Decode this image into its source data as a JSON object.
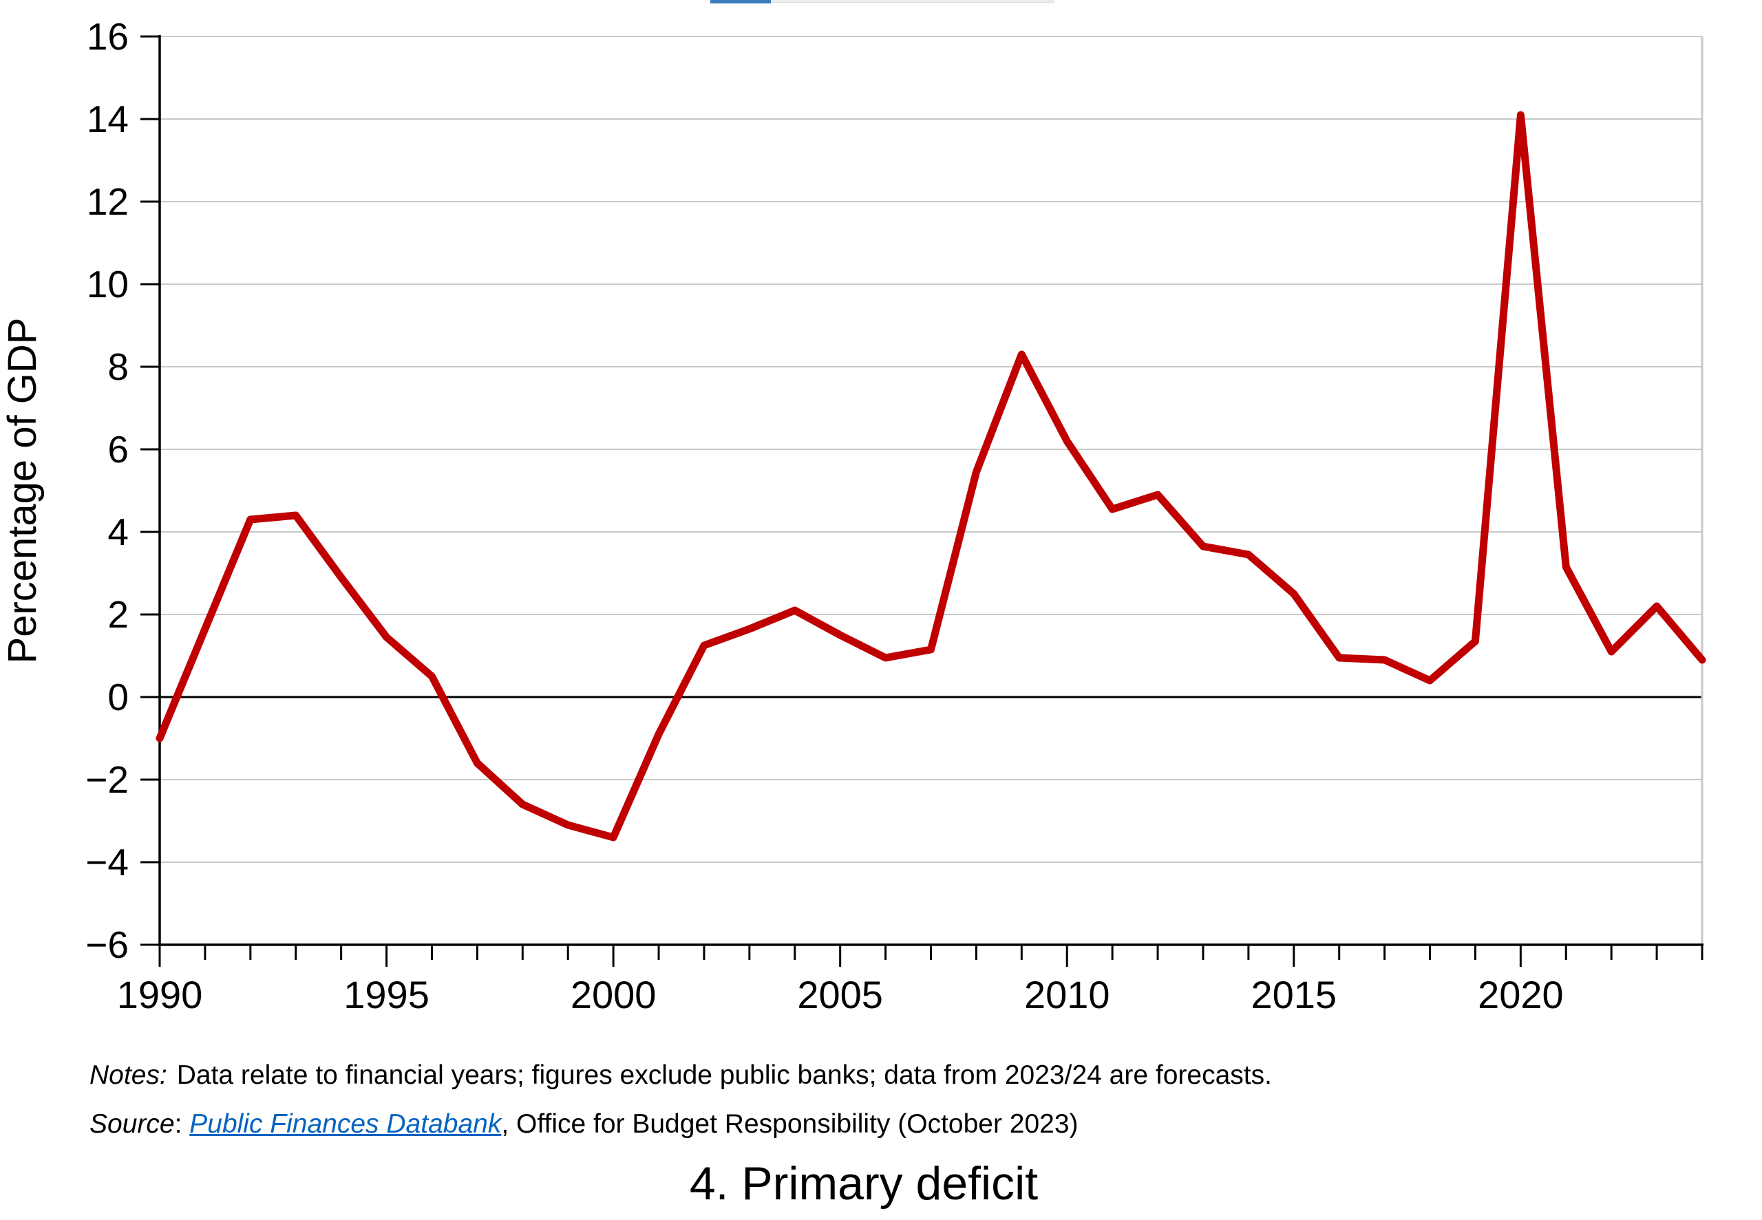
{
  "page": {
    "colors": {
      "series": "#c00000",
      "grid": "#c8c8c8",
      "axis": "#000000",
      "right_spine": "#c8c8c8",
      "link": "#0563c1",
      "tab_active": "#3a7cbe",
      "tab_track": "#ebebeb"
    }
  },
  "chart_data": {
    "type": "line",
    "title": "4. Primary deficit",
    "xlabel": "",
    "ylabel": "Percentage of GDP",
    "ylim": [
      -6,
      16
    ],
    "yticks": [
      -6,
      -4,
      -2,
      0,
      2,
      4,
      6,
      8,
      10,
      12,
      14,
      16
    ],
    "x_range": [
      1990,
      2024
    ],
    "xticks_labeled": [
      1990,
      1995,
      2000,
      2005,
      2010,
      2015,
      2020
    ],
    "xticks_minor_every": 1,
    "grid": true,
    "zero_line": true,
    "legend": false,
    "x": [
      1990,
      1991,
      1992,
      1993,
      1994,
      1995,
      1996,
      1997,
      1998,
      1999,
      2000,
      2001,
      2002,
      2003,
      2004,
      2005,
      2006,
      2007,
      2008,
      2009,
      2010,
      2011,
      2012,
      2013,
      2014,
      2015,
      2016,
      2017,
      2018,
      2019,
      2020,
      2021,
      2022,
      2023,
      2024
    ],
    "series": [
      {
        "name": "Primary deficit",
        "color": "#c00000",
        "values": [
          -1.0,
          1.65,
          4.3,
          4.4,
          2.9,
          1.45,
          0.5,
          -1.6,
          -2.6,
          -3.1,
          -3.4,
          -0.9,
          1.25,
          1.65,
          2.1,
          1.5,
          0.95,
          1.15,
          5.45,
          8.3,
          6.2,
          4.55,
          4.9,
          3.65,
          3.45,
          2.5,
          0.95,
          0.9,
          0.4,
          1.35,
          14.1,
          3.15,
          1.1,
          2.2,
          0.9
        ]
      }
    ]
  },
  "notes": {
    "label": "Notes:",
    "text": "Data relate to financial years; figures exclude public banks; data from 2023/24 are forecasts."
  },
  "source": {
    "label": "Source",
    "separator": ": ",
    "link_text": "Public Finances Databank",
    "rest": ", Office for Budget Responsibility (October 2023)"
  },
  "title": "4. Primary deficit"
}
